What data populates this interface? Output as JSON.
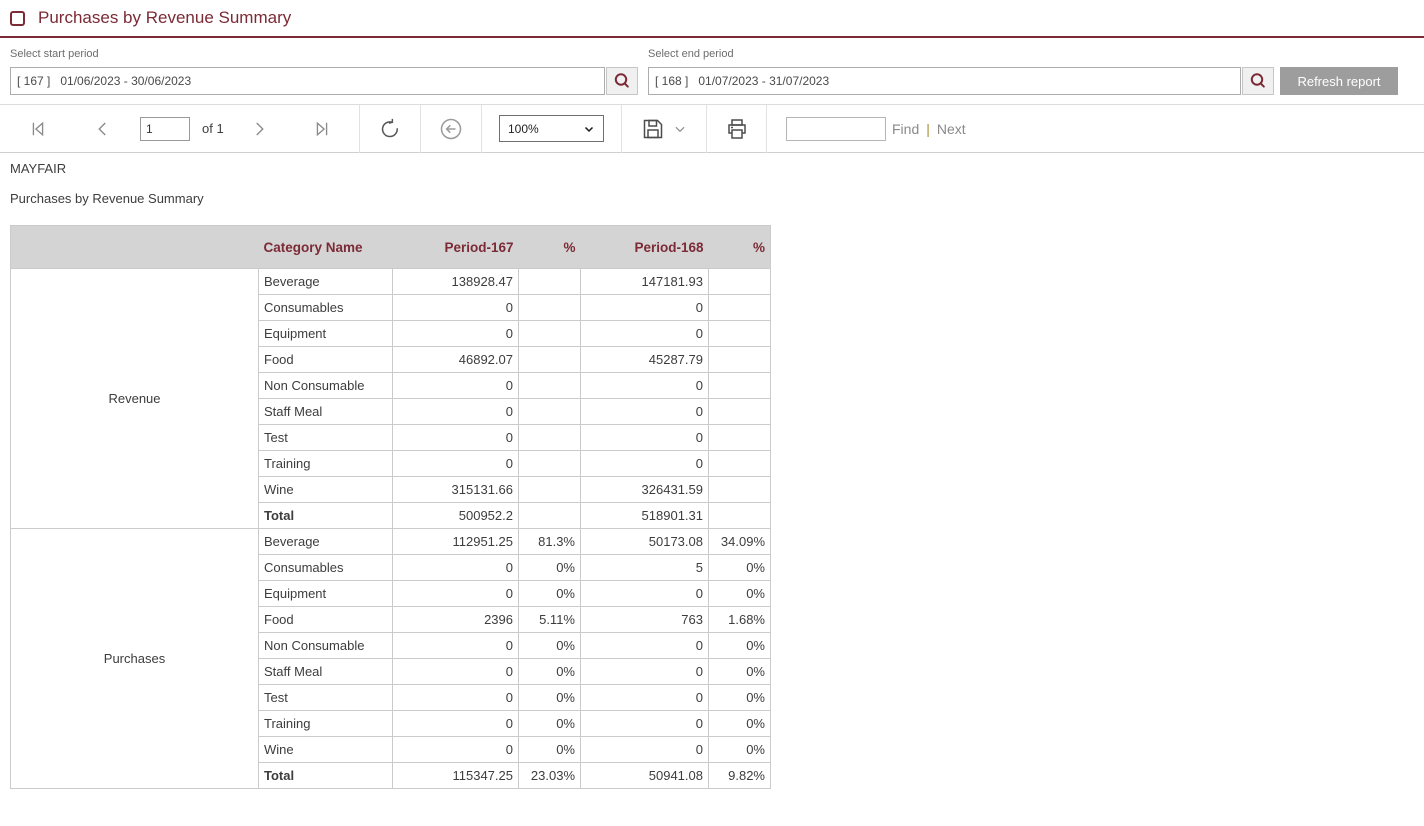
{
  "window": {
    "title": "Purchases by Revenue Summary"
  },
  "colors": {
    "accent": "#7b2a36",
    "header_bg": "#d4d4d4",
    "button_gray": "#9d9d9d",
    "table_border": "#cbcbcb"
  },
  "parameters": {
    "start_label": "Select start period",
    "start_value": "[ 167 ]   01/06/2023 - 30/06/2023",
    "end_label": "Select end period",
    "end_value": "[ 168 ]   01/07/2023 - 31/07/2023",
    "refresh_button_label": "Refresh report"
  },
  "toolbar": {
    "page_value": "1",
    "of_label": "of 1",
    "zoom_value": "100%",
    "find_value": "",
    "find_label": "Find",
    "pipe": "|",
    "next_label": "Next"
  },
  "report": {
    "company": "MAYFAIR",
    "title": "Purchases by Revenue Summary",
    "table": {
      "columns": [
        "",
        "Category Name",
        "Period-167",
        "%",
        "Period-168",
        "%"
      ],
      "groups": [
        {
          "name": "Revenue",
          "rows": [
            [
              "Beverage",
              "138928.47",
              "",
              "147181.93",
              ""
            ],
            [
              "Consumables",
              "0",
              "",
              "0",
              ""
            ],
            [
              "Equipment",
              "0",
              "",
              "0",
              ""
            ],
            [
              "Food",
              "46892.07",
              "",
              "45287.79",
              ""
            ],
            [
              "Non Consumable",
              "0",
              "",
              "0",
              ""
            ],
            [
              "Staff Meal",
              "0",
              "",
              "0",
              ""
            ],
            [
              "Test",
              "0",
              "",
              "0",
              ""
            ],
            [
              "Training",
              "0",
              "",
              "0",
              ""
            ],
            [
              "Wine",
              "315131.66",
              "",
              "326431.59",
              ""
            ]
          ],
          "total": [
            "Total",
            "500952.2",
            "",
            "518901.31",
            ""
          ]
        },
        {
          "name": "Purchases",
          "rows": [
            [
              "Beverage",
              "112951.25",
              "81.3%",
              "50173.08",
              "34.09%"
            ],
            [
              "Consumables",
              "0",
              "0%",
              "5",
              "0%"
            ],
            [
              "Equipment",
              "0",
              "0%",
              "0",
              "0%"
            ],
            [
              "Food",
              "2396",
              "5.11%",
              "763",
              "1.68%"
            ],
            [
              "Non Consumable",
              "0",
              "0%",
              "0",
              "0%"
            ],
            [
              "Staff Meal",
              "0",
              "0%",
              "0",
              "0%"
            ],
            [
              "Test",
              "0",
              "0%",
              "0",
              "0%"
            ],
            [
              "Training",
              "0",
              "0%",
              "0",
              "0%"
            ],
            [
              "Wine",
              "0",
              "0%",
              "0",
              "0%"
            ]
          ],
          "total": [
            "Total",
            "115347.25",
            "23.03%",
            "50941.08",
            "9.82%"
          ]
        }
      ]
    }
  }
}
